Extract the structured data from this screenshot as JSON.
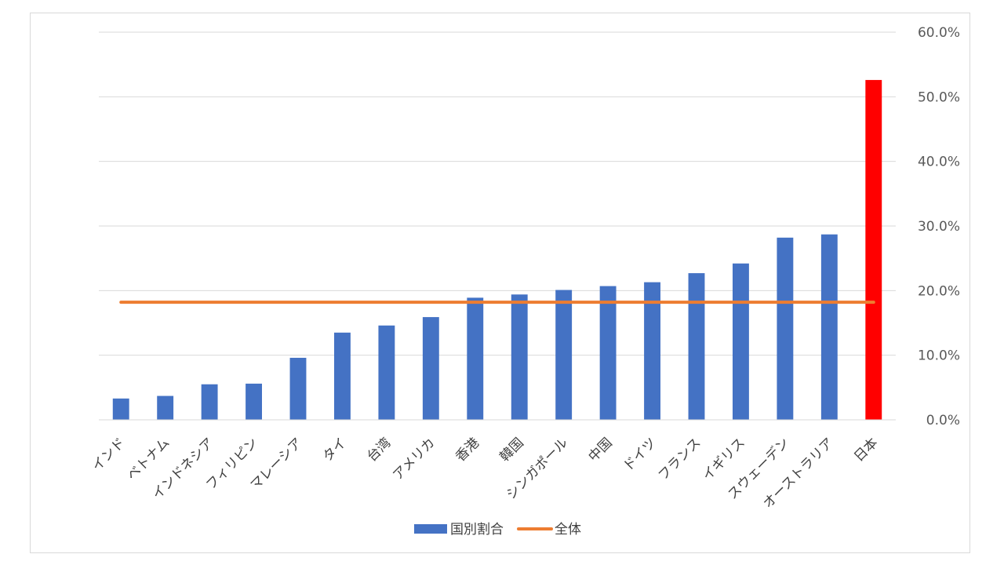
{
  "chart_data": {
    "type": "bar",
    "title": "",
    "xlabel": "",
    "ylabel": "",
    "ylim": [
      0,
      60
    ],
    "yticks": [
      "0.0%",
      "10.0%",
      "20.0%",
      "30.0%",
      "40.0%",
      "50.0%",
      "60.0%"
    ],
    "y_axis_side": "right",
    "grid": true,
    "legend_position": "bottom",
    "categories": [
      "インド",
      "ベトナム",
      "インドネシア",
      "フィリピン",
      "マレーシア",
      "タイ",
      "台湾",
      "アメリカ",
      "香港",
      "韓国",
      "シンガポール",
      "中国",
      "ドイツ",
      "フランス",
      "イギリス",
      "スウェーデン",
      "オーストラリア",
      "日本"
    ],
    "series": [
      {
        "name": "国別割合",
        "kind": "bar",
        "color": "#4472c4",
        "highlight": {
          "category": "日本",
          "color": "#ff0000"
        },
        "values": [
          3.3,
          3.7,
          5.5,
          5.6,
          9.6,
          13.5,
          14.6,
          15.9,
          18.9,
          19.4,
          20.1,
          20.7,
          21.3,
          22.7,
          24.2,
          28.2,
          28.7,
          52.6
        ]
      },
      {
        "name": "全体",
        "kind": "line",
        "color": "#ed7d31",
        "values": [
          18.2,
          18.2,
          18.2,
          18.2,
          18.2,
          18.2,
          18.2,
          18.2,
          18.2,
          18.2,
          18.2,
          18.2,
          18.2,
          18.2,
          18.2,
          18.2,
          18.2,
          18.2
        ]
      }
    ]
  }
}
